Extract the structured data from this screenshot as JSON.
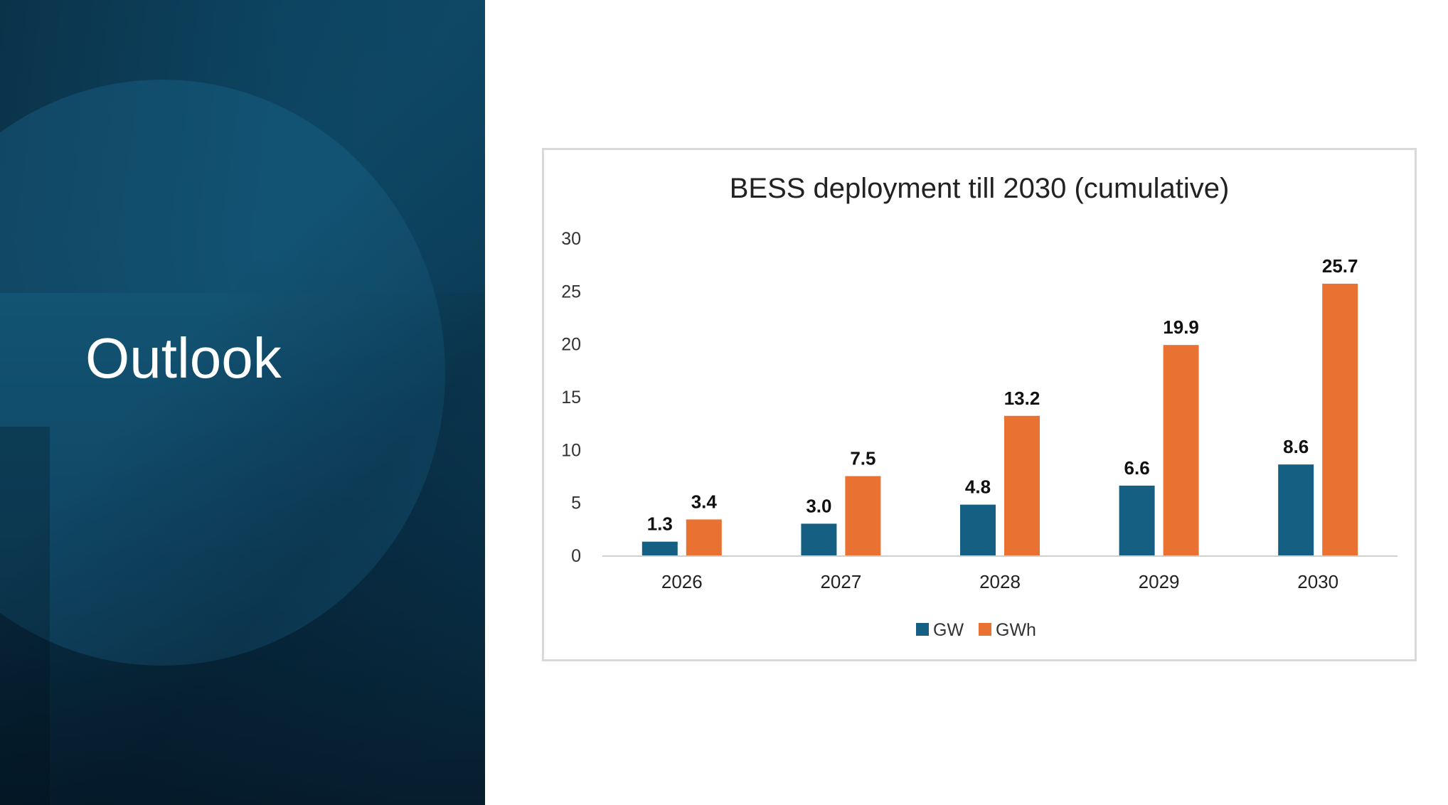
{
  "slide": {
    "title": "Outlook"
  },
  "colors": {
    "panel_dark": "#0b3a54",
    "gw": "#156082",
    "gwh": "#e97132"
  },
  "chart_data": {
    "type": "bar",
    "title": "BESS deployment till 2030 (cumulative)",
    "xlabel": "",
    "ylabel": "",
    "categories": [
      "2026",
      "2027",
      "2028",
      "2029",
      "2030"
    ],
    "series": [
      {
        "name": "GW",
        "color": "#156082",
        "values": [
          1.3,
          3.0,
          4.8,
          6.6,
          8.6
        ],
        "labels": [
          "1.3",
          "3.0",
          "4.8",
          "6.6",
          "8.6"
        ]
      },
      {
        "name": "GWh",
        "color": "#e97132",
        "values": [
          3.4,
          7.5,
          13.2,
          19.9,
          25.7
        ],
        "labels": [
          "3.4",
          "7.5",
          "13.2",
          "19.9",
          "25.7"
        ]
      }
    ],
    "ylim": [
      0,
      30
    ],
    "yticks": [
      "0",
      "5",
      "10",
      "15",
      "20",
      "25",
      "30"
    ],
    "grid": false,
    "legend": "bottom"
  }
}
